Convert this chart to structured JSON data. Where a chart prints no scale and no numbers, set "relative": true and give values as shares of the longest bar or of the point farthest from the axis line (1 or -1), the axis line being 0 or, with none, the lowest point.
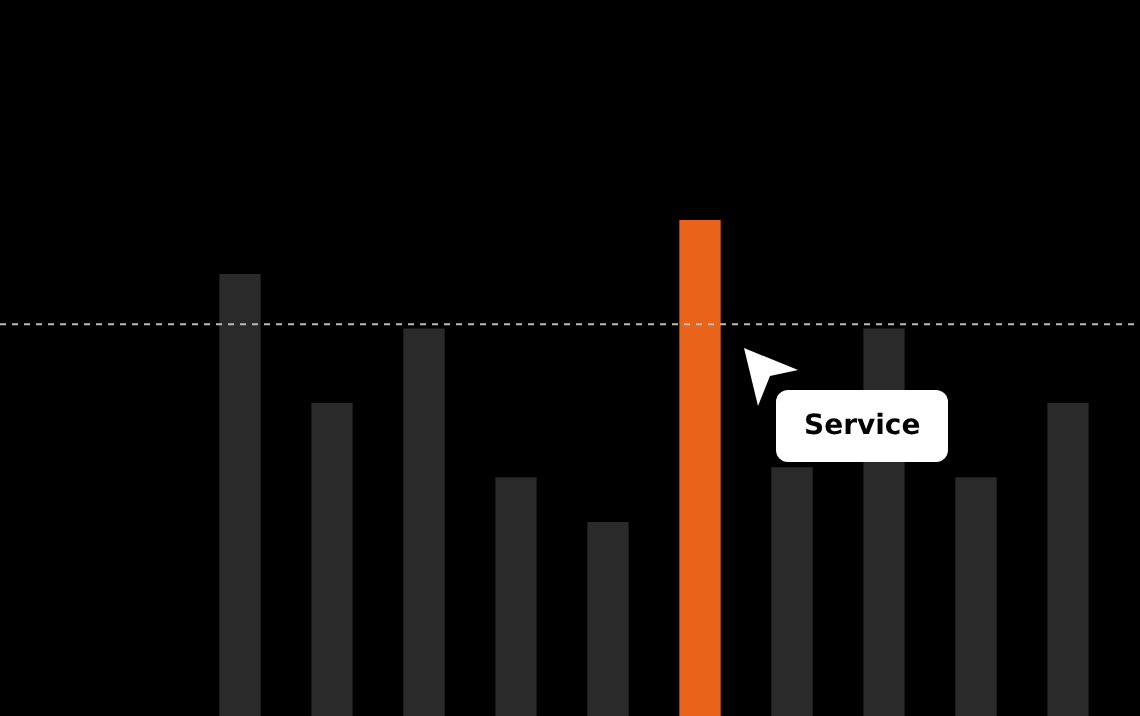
{
  "chart_data": {
    "type": "bar",
    "relative": true,
    "categories": [
      null,
      null,
      null,
      null,
      null,
      null,
      null,
      null,
      null,
      null
    ],
    "values": [
      0.89,
      0.63,
      0.78,
      0.48,
      0.39,
      1,
      0.5,
      0.78,
      0.48,
      0.63
    ],
    "colors": [
      "#2a2a2a",
      "#2a2a2a",
      "#2a2a2a",
      "#2a2a2a",
      "#2a2a2a",
      "#e8641a",
      "#2a2a2a",
      "#2a2a2a",
      "#2a2a2a",
      "#2a2a2a"
    ],
    "ref_lines": [
      {
        "axis": "y",
        "value": 0.79,
        "color": "#bbbbbb",
        "line_style": "dashed"
      }
    ],
    "annotations": [
      "Service"
    ],
    "legend": false
  }
}
